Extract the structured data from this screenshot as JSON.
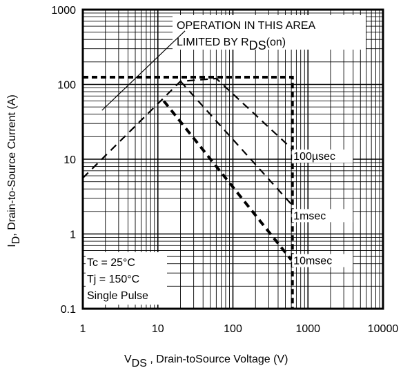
{
  "chart_data": {
    "type": "line",
    "xscale": "log",
    "yscale": "log",
    "xlim": [
      1,
      10000
    ],
    "ylim": [
      0.1,
      1000
    ],
    "grid": true,
    "x_ticks": [
      {
        "value": 1,
        "label": "1"
      },
      {
        "value": 10,
        "label": "10"
      },
      {
        "value": 100,
        "label": "100"
      },
      {
        "value": 1000,
        "label": "1000"
      },
      {
        "value": 10000,
        "label": "10000"
      }
    ],
    "y_ticks": [
      {
        "value": 0.1,
        "label": "0.1"
      },
      {
        "value": 1,
        "label": "1"
      },
      {
        "value": 10,
        "label": "10"
      },
      {
        "value": 100,
        "label": "100"
      },
      {
        "value": 1000,
        "label": "1000"
      }
    ],
    "xlabel": {
      "main": "V",
      "sub": "DS",
      "rest": " , Drain-toSource Voltage (V)"
    },
    "ylabel": {
      "main": "I",
      "sub": "D",
      "rest": ",  Drain-to-Source Current (A)"
    },
    "rds_annotation": {
      "line1": "OPERATION IN THIS AREA",
      "line2_pre": "LIMITED BY R",
      "line2_sub": "DS",
      "line2_post": "(on)"
    },
    "rds_limit_line": [
      {
        "x": 1.8,
        "y": 45
      },
      {
        "x": 23,
        "y": 520
      }
    ],
    "conditions": [
      "Tc = 25°C",
      "Tj = 150°C",
      "Single Pulse"
    ],
    "series": [
      {
        "name": "100µsec",
        "style": "dashed",
        "points": [
          {
            "x": 1,
            "y": 5.6
          },
          {
            "x": 20,
            "y": 110
          },
          {
            "x": 60,
            "y": 120
          },
          {
            "x": 600,
            "y": 14
          }
        ]
      },
      {
        "name": "1msec",
        "style": "dashed",
        "points": [
          {
            "x": 20,
            "y": 110
          },
          {
            "x": 600,
            "y": 2.5
          }
        ]
      },
      {
        "name": "10msec",
        "style": "dashed-bold",
        "points": [
          {
            "x": 12,
            "y": 60
          },
          {
            "x": 600,
            "y": 0.45
          }
        ]
      },
      {
        "name": "",
        "style": "dotted-bold",
        "points": [
          {
            "x": 1,
            "y": 125
          },
          {
            "x": 620,
            "y": 125
          },
          {
            "x": 620,
            "y": 0.1
          }
        ]
      }
    ],
    "curve_labels": [
      {
        "series": "100µsec",
        "x": 640,
        "y": 10
      },
      {
        "series": "1msec",
        "x": 640,
        "y": 1.6
      },
      {
        "series": "10msec",
        "x": 640,
        "y": 0.4
      }
    ]
  }
}
